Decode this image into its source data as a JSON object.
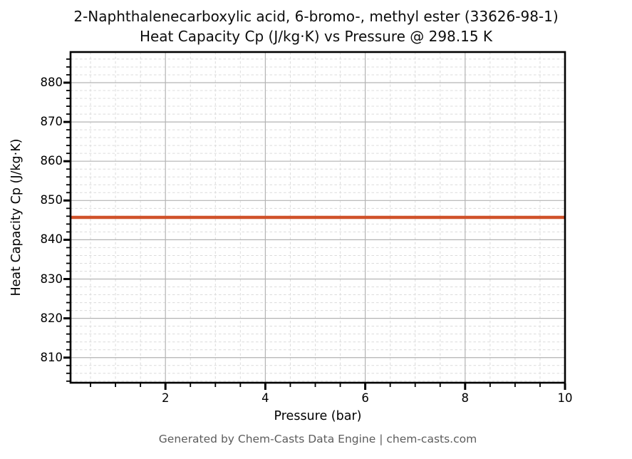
{
  "title_line1": "2-Naphthalenecarboxylic acid, 6-bromo-, methyl ester (33626-98-1)",
  "title_line2": "Heat Capacity Cp (J/kg·K) vs Pressure @ 298.15 K",
  "footer": "Generated by Chem-Casts Data Engine | chem-casts.com",
  "chart_data": {
    "type": "line",
    "title": "2-Naphthalenecarboxylic acid, 6-bromo-, methyl ester (33626-98-1)\nHeat Capacity Cp (J/kg·K) vs Pressure @ 298.15 K",
    "xlabel": "Pressure (bar)",
    "ylabel": "Heat Capacity Cp (J/kg·K)",
    "xlim": [
      0.1,
      10
    ],
    "ylim": [
      803.6,
      887.8
    ],
    "x_major_ticks": [
      2,
      4,
      6,
      8,
      10
    ],
    "x_minor_step": 0.5,
    "y_major_ticks": [
      810,
      820,
      830,
      840,
      850,
      860,
      870,
      880
    ],
    "y_minor_step": 2,
    "grid": {
      "major_on": true,
      "minor_on": true,
      "major_color": "#b3b3b3",
      "minor_color": "#dcdcdc"
    },
    "legend": "none",
    "series": [
      {
        "name": "Heat Capacity Cp",
        "x": [
          0.1,
          10
        ],
        "y": [
          845.7,
          845.7
        ],
        "color": "#d0522a",
        "line_width": 4.5
      }
    ],
    "constant_value": 845.7,
    "temperature_condition": "298.15 K"
  },
  "style": {
    "frame_color": "#000000",
    "tick_color": "#000000",
    "background": "#ffffff"
  }
}
